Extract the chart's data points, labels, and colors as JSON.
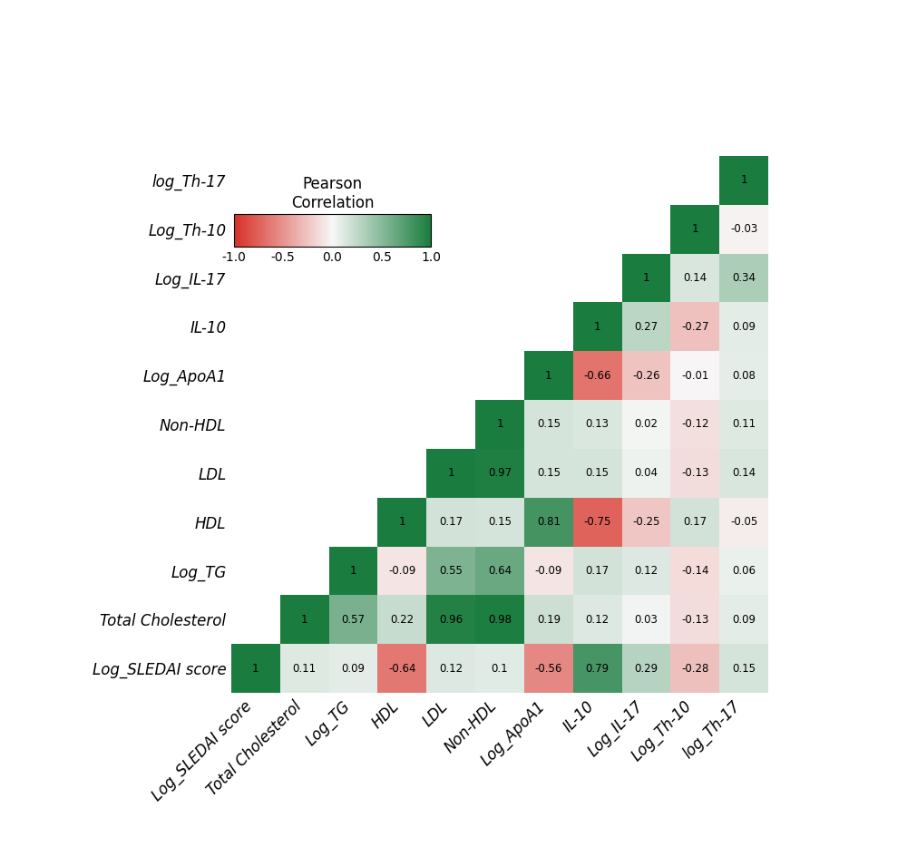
{
  "col_labels": [
    "Log_SLEDAI score",
    "Total Cholesterol",
    "Log_TG",
    "HDL",
    "LDL",
    "Non-HDL",
    "Log_ApoA1",
    "IL-10",
    "Log_IL-17",
    "Log_Th-10",
    "log_Th-17"
  ],
  "row_labels": [
    "log_Th-17",
    "Log_Th-10",
    "Log_IL-17",
    "IL-10",
    "Log_ApoA1",
    "Non-HDL",
    "LDL",
    "HDL",
    "Log_TG",
    "Total Cholesterol",
    "Log_SLEDAI score"
  ],
  "corr_matrix": [
    [
      1.0,
      0.11,
      0.09,
      -0.64,
      0.12,
      0.1,
      -0.56,
      0.79,
      0.29,
      -0.28,
      0.15
    ],
    [
      0.11,
      1.0,
      0.57,
      0.22,
      0.96,
      0.98,
      0.19,
      0.12,
      0.03,
      -0.13,
      0.09
    ],
    [
      0.09,
      0.57,
      1.0,
      -0.09,
      0.55,
      0.64,
      -0.09,
      0.17,
      0.12,
      -0.14,
      0.06
    ],
    [
      -0.64,
      0.22,
      -0.09,
      1.0,
      0.17,
      0.15,
      0.81,
      -0.75,
      -0.25,
      0.17,
      -0.05
    ],
    [
      0.12,
      0.96,
      0.55,
      0.17,
      1.0,
      0.97,
      0.15,
      0.15,
      0.04,
      -0.13,
      0.14
    ],
    [
      0.1,
      0.98,
      0.64,
      0.15,
      0.97,
      1.0,
      0.15,
      0.13,
      0.02,
      -0.12,
      0.11
    ],
    [
      -0.56,
      0.19,
      -0.09,
      0.81,
      0.15,
      0.15,
      1.0,
      -0.66,
      -0.26,
      -0.01,
      0.08
    ],
    [
      0.79,
      0.12,
      0.17,
      -0.75,
      0.15,
      0.13,
      -0.66,
      1.0,
      0.27,
      -0.27,
      0.09
    ],
    [
      0.29,
      0.03,
      0.12,
      -0.25,
      0.04,
      0.02,
      -0.26,
      0.27,
      1.0,
      0.14,
      0.34
    ],
    [
      -0.28,
      -0.13,
      -0.14,
      0.17,
      -0.13,
      -0.12,
      -0.01,
      -0.27,
      0.14,
      1.0,
      -0.03
    ],
    [
      0.15,
      0.09,
      0.06,
      -0.05,
      0.14,
      0.11,
      0.08,
      0.09,
      0.34,
      -0.03,
      1.0
    ]
  ],
  "vmin": -1.0,
  "vmax": 1.0,
  "colorbar_title": "Pearson\nCorrelation",
  "colorbar_ticks": [
    -1.0,
    -0.5,
    0.0,
    0.5,
    1.0
  ],
  "colorbar_ticklabels": [
    "-1.0",
    "-0.5",
    "0.0",
    "0.5",
    "1.0"
  ],
  "color_neg": "#d73027",
  "color_zero": "#f7f7f7",
  "color_pos": "#1a7c3e",
  "background_color": "#ffffff",
  "cell_text_fontsize": 8.5,
  "row_label_fontsize": 12,
  "col_label_fontsize": 12,
  "colorbar_title_fontsize": 12,
  "colorbar_tick_fontsize": 10
}
